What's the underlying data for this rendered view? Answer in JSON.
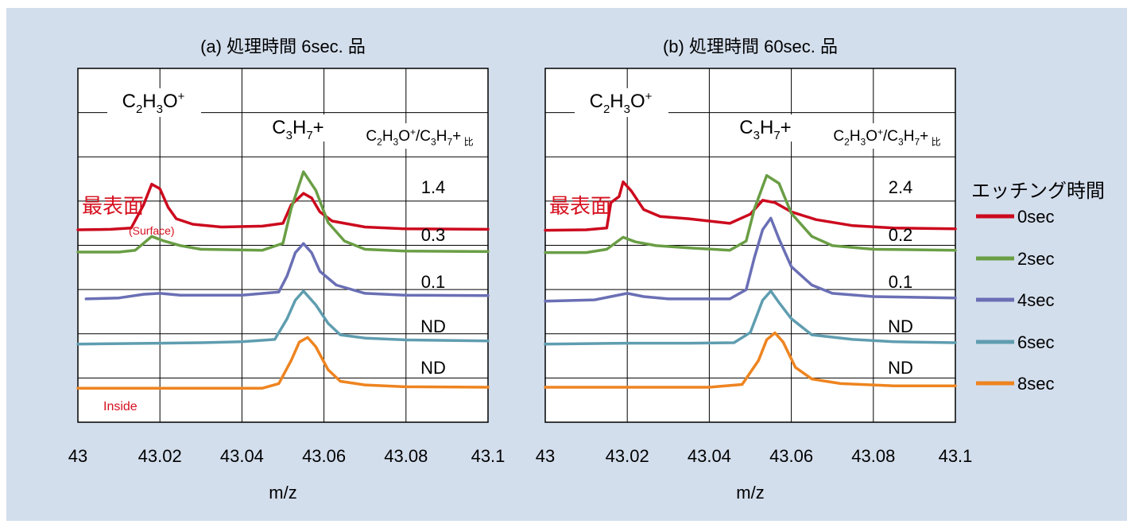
{
  "colors": {
    "0sec": "#cc0a1e",
    "2sec": "#6a9e45",
    "4sec": "#6a6fb5",
    "6sec": "#5f9db0",
    "8sec": "#ee8420",
    "grid": "#000000",
    "background": "#d3deed",
    "red_text": "#d6101f"
  },
  "legend": {
    "title": "エッチング時間",
    "items": [
      {
        "label": "0sec",
        "color": "#cc0a1e"
      },
      {
        "label": "2sec",
        "color": "#6a9e45"
      },
      {
        "label": "4sec",
        "color": "#6a6fb5"
      },
      {
        "label": "6sec",
        "color": "#5f9db0"
      },
      {
        "label": "8sec",
        "color": "#ee8420"
      }
    ]
  },
  "chart_data": [
    {
      "type": "line",
      "title": "(a) 処理時間 6sec. 品",
      "xlabel": "m/z",
      "ylabel": "",
      "xlim": [
        43.0,
        43.1
      ],
      "x_ticks": [
        "43",
        "43.02",
        "43.04",
        "43.06",
        "43.08",
        "43.1"
      ],
      "grid": true,
      "peak_labels": {
        "c2h3o": [
          "C",
          "2",
          "H",
          "3",
          "O",
          "+"
        ],
        "c3h7": [
          "C",
          "3",
          "H",
          "7",
          "+"
        ]
      },
      "ratio_header": [
        "C",
        "2",
        "H",
        "3",
        "O",
        "+",
        "/C",
        "3",
        "H",
        "7",
        "+",
        " 比"
      ],
      "ratios": [
        "1.4",
        "0.3",
        "0.1",
        "ND",
        "ND"
      ],
      "annotations": {
        "surface": "最表面",
        "surface_en": "(Surface)",
        "inside": "Inside"
      },
      "series": [
        {
          "name": "0sec",
          "color": "#cc0a1e",
          "values": [
            [
              43.0,
              1.06
            ],
            [
              43.008,
              1.07
            ],
            [
              43.013,
              1.1
            ],
            [
              43.016,
              1.6
            ],
            [
              43.018,
              2.05
            ],
            [
              43.02,
              1.95
            ],
            [
              43.022,
              1.55
            ],
            [
              43.024,
              1.3
            ],
            [
              43.028,
              1.18
            ],
            [
              43.035,
              1.12
            ],
            [
              43.045,
              1.14
            ],
            [
              43.05,
              1.2
            ],
            [
              43.052,
              1.6
            ],
            [
              43.055,
              1.85
            ],
            [
              43.057,
              1.75
            ],
            [
              43.059,
              1.45
            ],
            [
              43.062,
              1.25
            ],
            [
              43.07,
              1.12
            ],
            [
              43.08,
              1.08
            ],
            [
              43.1,
              1.07
            ]
          ]
        },
        {
          "name": "2sec",
          "color": "#6a9e45",
          "values": [
            [
              43.0,
              0.06
            ],
            [
              43.01,
              0.06
            ],
            [
              43.014,
              0.1
            ],
            [
              43.018,
              0.4
            ],
            [
              43.021,
              0.3
            ],
            [
              43.025,
              0.2
            ],
            [
              43.03,
              0.12
            ],
            [
              43.045,
              0.1
            ],
            [
              43.05,
              0.25
            ],
            [
              43.052,
              1.0
            ],
            [
              43.055,
              1.8
            ],
            [
              43.058,
              1.4
            ],
            [
              43.061,
              0.7
            ],
            [
              43.065,
              0.3
            ],
            [
              43.07,
              0.12
            ],
            [
              43.08,
              0.08
            ],
            [
              43.1,
              0.07
            ]
          ]
        },
        {
          "name": "4sec",
          "color": "#6a6fb5",
          "values": [
            [
              43.002,
              -0.9
            ],
            [
              43.01,
              -0.88
            ],
            [
              43.016,
              -0.8
            ],
            [
              43.02,
              -0.78
            ],
            [
              43.025,
              -0.82
            ],
            [
              43.04,
              -0.82
            ],
            [
              43.049,
              -0.75
            ],
            [
              43.051,
              -0.4
            ],
            [
              43.053,
              0.1
            ],
            [
              43.055,
              0.3
            ],
            [
              43.057,
              0.1
            ],
            [
              43.059,
              -0.3
            ],
            [
              43.063,
              -0.6
            ],
            [
              43.07,
              -0.78
            ],
            [
              43.08,
              -0.82
            ],
            [
              43.1,
              -0.83
            ]
          ]
        },
        {
          "name": "6sec",
          "color": "#5f9db0",
          "values": [
            [
              43.0,
              -1.95
            ],
            [
              43.02,
              -1.93
            ],
            [
              43.03,
              -1.92
            ],
            [
              43.04,
              -1.9
            ],
            [
              43.048,
              -1.85
            ],
            [
              43.051,
              -1.4
            ],
            [
              43.053,
              -1.0
            ],
            [
              43.055,
              -0.8
            ],
            [
              43.058,
              -1.1
            ],
            [
              43.061,
              -1.5
            ],
            [
              43.064,
              -1.75
            ],
            [
              43.07,
              -1.82
            ],
            [
              43.08,
              -1.86
            ],
            [
              43.1,
              -1.88
            ]
          ]
        },
        {
          "name": "8sec",
          "color": "#ee8420",
          "values": [
            [
              43.0,
              -3.0
            ],
            [
              43.02,
              -3.0
            ],
            [
              43.045,
              -3.0
            ],
            [
              43.049,
              -2.9
            ],
            [
              43.052,
              -2.4
            ],
            [
              43.054,
              -2.0
            ],
            [
              43.056,
              -1.9
            ],
            [
              43.058,
              -2.1
            ],
            [
              43.061,
              -2.6
            ],
            [
              43.064,
              -2.85
            ],
            [
              43.07,
              -2.93
            ],
            [
              43.08,
              -2.97
            ],
            [
              43.1,
              -2.98
            ]
          ]
        }
      ]
    },
    {
      "type": "line",
      "title": "(b) 処理時間 60sec. 品",
      "xlabel": "m/z",
      "ylabel": "",
      "xlim": [
        43.0,
        43.1
      ],
      "x_ticks": [
        "43",
        "43.02",
        "43.04",
        "43.06",
        "43.08",
        "43.1"
      ],
      "grid": true,
      "peak_labels": {
        "c2h3o": [
          "C",
          "2",
          "H",
          "3",
          "O",
          "+"
        ],
        "c3h7": [
          "C",
          "3",
          "H",
          "7",
          "+"
        ]
      },
      "ratio_header": [
        "C",
        "2",
        "H",
        "3",
        "O",
        "+",
        "/C",
        "3",
        "H",
        "7",
        "+",
        " 比"
      ],
      "ratios": [
        "2.4",
        "0.2",
        "0.1",
        "ND",
        "ND"
      ],
      "annotations": {
        "surface": "最表面"
      },
      "series": [
        {
          "name": "0sec",
          "color": "#cc0a1e",
          "values": [
            [
              43.0,
              1.05
            ],
            [
              43.01,
              1.06
            ],
            [
              43.015,
              1.1
            ],
            [
              43.016,
              1.65
            ],
            [
              43.018,
              1.78
            ],
            [
              43.019,
              2.1
            ],
            [
              43.021,
              1.9
            ],
            [
              43.024,
              1.5
            ],
            [
              43.028,
              1.35
            ],
            [
              43.035,
              1.3
            ],
            [
              43.045,
              1.2
            ],
            [
              43.05,
              1.4
            ],
            [
              43.053,
              1.7
            ],
            [
              43.056,
              1.65
            ],
            [
              43.06,
              1.45
            ],
            [
              43.066,
              1.28
            ],
            [
              43.075,
              1.15
            ],
            [
              43.085,
              1.1
            ],
            [
              43.1,
              1.08
            ]
          ]
        },
        {
          "name": "2sec",
          "color": "#6a9e45",
          "values": [
            [
              43.0,
              0.05
            ],
            [
              43.01,
              0.05
            ],
            [
              43.015,
              0.12
            ],
            [
              43.019,
              0.38
            ],
            [
              43.022,
              0.28
            ],
            [
              43.027,
              0.2
            ],
            [
              43.035,
              0.15
            ],
            [
              43.045,
              0.1
            ],
            [
              43.049,
              0.3
            ],
            [
              43.051,
              1.0
            ],
            [
              43.054,
              1.72
            ],
            [
              43.057,
              1.55
            ],
            [
              43.06,
              0.9
            ],
            [
              43.065,
              0.4
            ],
            [
              43.07,
              0.2
            ],
            [
              43.08,
              0.12
            ],
            [
              43.1,
              0.1
            ]
          ]
        },
        {
          "name": "4sec",
          "color": "#6a6fb5",
          "values": [
            [
              43.0,
              -0.95
            ],
            [
              43.012,
              -0.92
            ],
            [
              43.016,
              -0.85
            ],
            [
              43.02,
              -0.78
            ],
            [
              43.024,
              -0.85
            ],
            [
              43.03,
              -0.9
            ],
            [
              43.045,
              -0.9
            ],
            [
              43.049,
              -0.7
            ],
            [
              43.051,
              0.0
            ],
            [
              43.053,
              0.6
            ],
            [
              43.055,
              0.85
            ],
            [
              43.057,
              0.4
            ],
            [
              43.06,
              -0.2
            ],
            [
              43.065,
              -0.6
            ],
            [
              43.07,
              -0.78
            ],
            [
              43.08,
              -0.85
            ],
            [
              43.1,
              -0.88
            ]
          ]
        },
        {
          "name": "6sec",
          "color": "#5f9db0",
          "values": [
            [
              43.0,
              -1.95
            ],
            [
              43.02,
              -1.93
            ],
            [
              43.035,
              -1.93
            ],
            [
              43.046,
              -1.92
            ],
            [
              43.05,
              -1.7
            ],
            [
              43.053,
              -1.0
            ],
            [
              43.055,
              -0.8
            ],
            [
              43.057,
              -1.05
            ],
            [
              43.06,
              -1.4
            ],
            [
              43.065,
              -1.75
            ],
            [
              43.075,
              -1.85
            ],
            [
              43.085,
              -1.9
            ],
            [
              43.1,
              -1.92
            ]
          ]
        },
        {
          "name": "8sec",
          "color": "#ee8420",
          "values": [
            [
              43.0,
              -2.98
            ],
            [
              43.02,
              -2.98
            ],
            [
              43.04,
              -2.98
            ],
            [
              43.048,
              -2.92
            ],
            [
              43.052,
              -2.4
            ],
            [
              43.054,
              -1.95
            ],
            [
              43.056,
              -1.8
            ],
            [
              43.058,
              -2.0
            ],
            [
              43.061,
              -2.55
            ],
            [
              43.065,
              -2.8
            ],
            [
              43.072,
              -2.9
            ],
            [
              43.085,
              -2.95
            ],
            [
              43.1,
              -2.95
            ]
          ]
        }
      ]
    }
  ]
}
